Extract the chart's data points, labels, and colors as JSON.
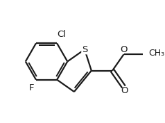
{
  "bg_color": "#ffffff",
  "bond_color": "#1a1a1a",
  "atom_color": "#1a1a1a",
  "line_width": 1.6,
  "font_size": 9.5,
  "figsize": [
    2.38,
    1.77
  ],
  "dpi": 100,
  "xlim": [
    0.0,
    1.0
  ],
  "ylim": [
    0.05,
    0.95
  ]
}
